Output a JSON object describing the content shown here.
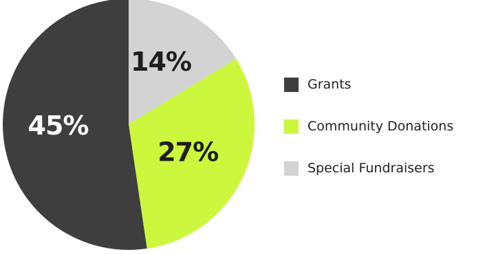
{
  "chart_data": {
    "type": "pie",
    "slices": [
      {
        "label": "Special Fundraisers",
        "value": 14,
        "display": "14%",
        "color": "#d3d3d3",
        "text_color": "#1e1e1e"
      },
      {
        "label": "Community Donations",
        "value": 27,
        "display": "27%",
        "color": "#ccf73d",
        "text_color": "#1e1e1e"
      },
      {
        "label": "Grants",
        "value": 45,
        "display": "45%",
        "color": "#3e3e3e",
        "text_color": "#ffffff"
      }
    ],
    "legend": [
      {
        "label": "Grants",
        "color": "#3e3e3e"
      },
      {
        "label": "Community Donations",
        "color": "#ccf73d"
      },
      {
        "label": "Special Fundraisers",
        "color": "#d3d3d3"
      }
    ],
    "legend_position": "right"
  }
}
